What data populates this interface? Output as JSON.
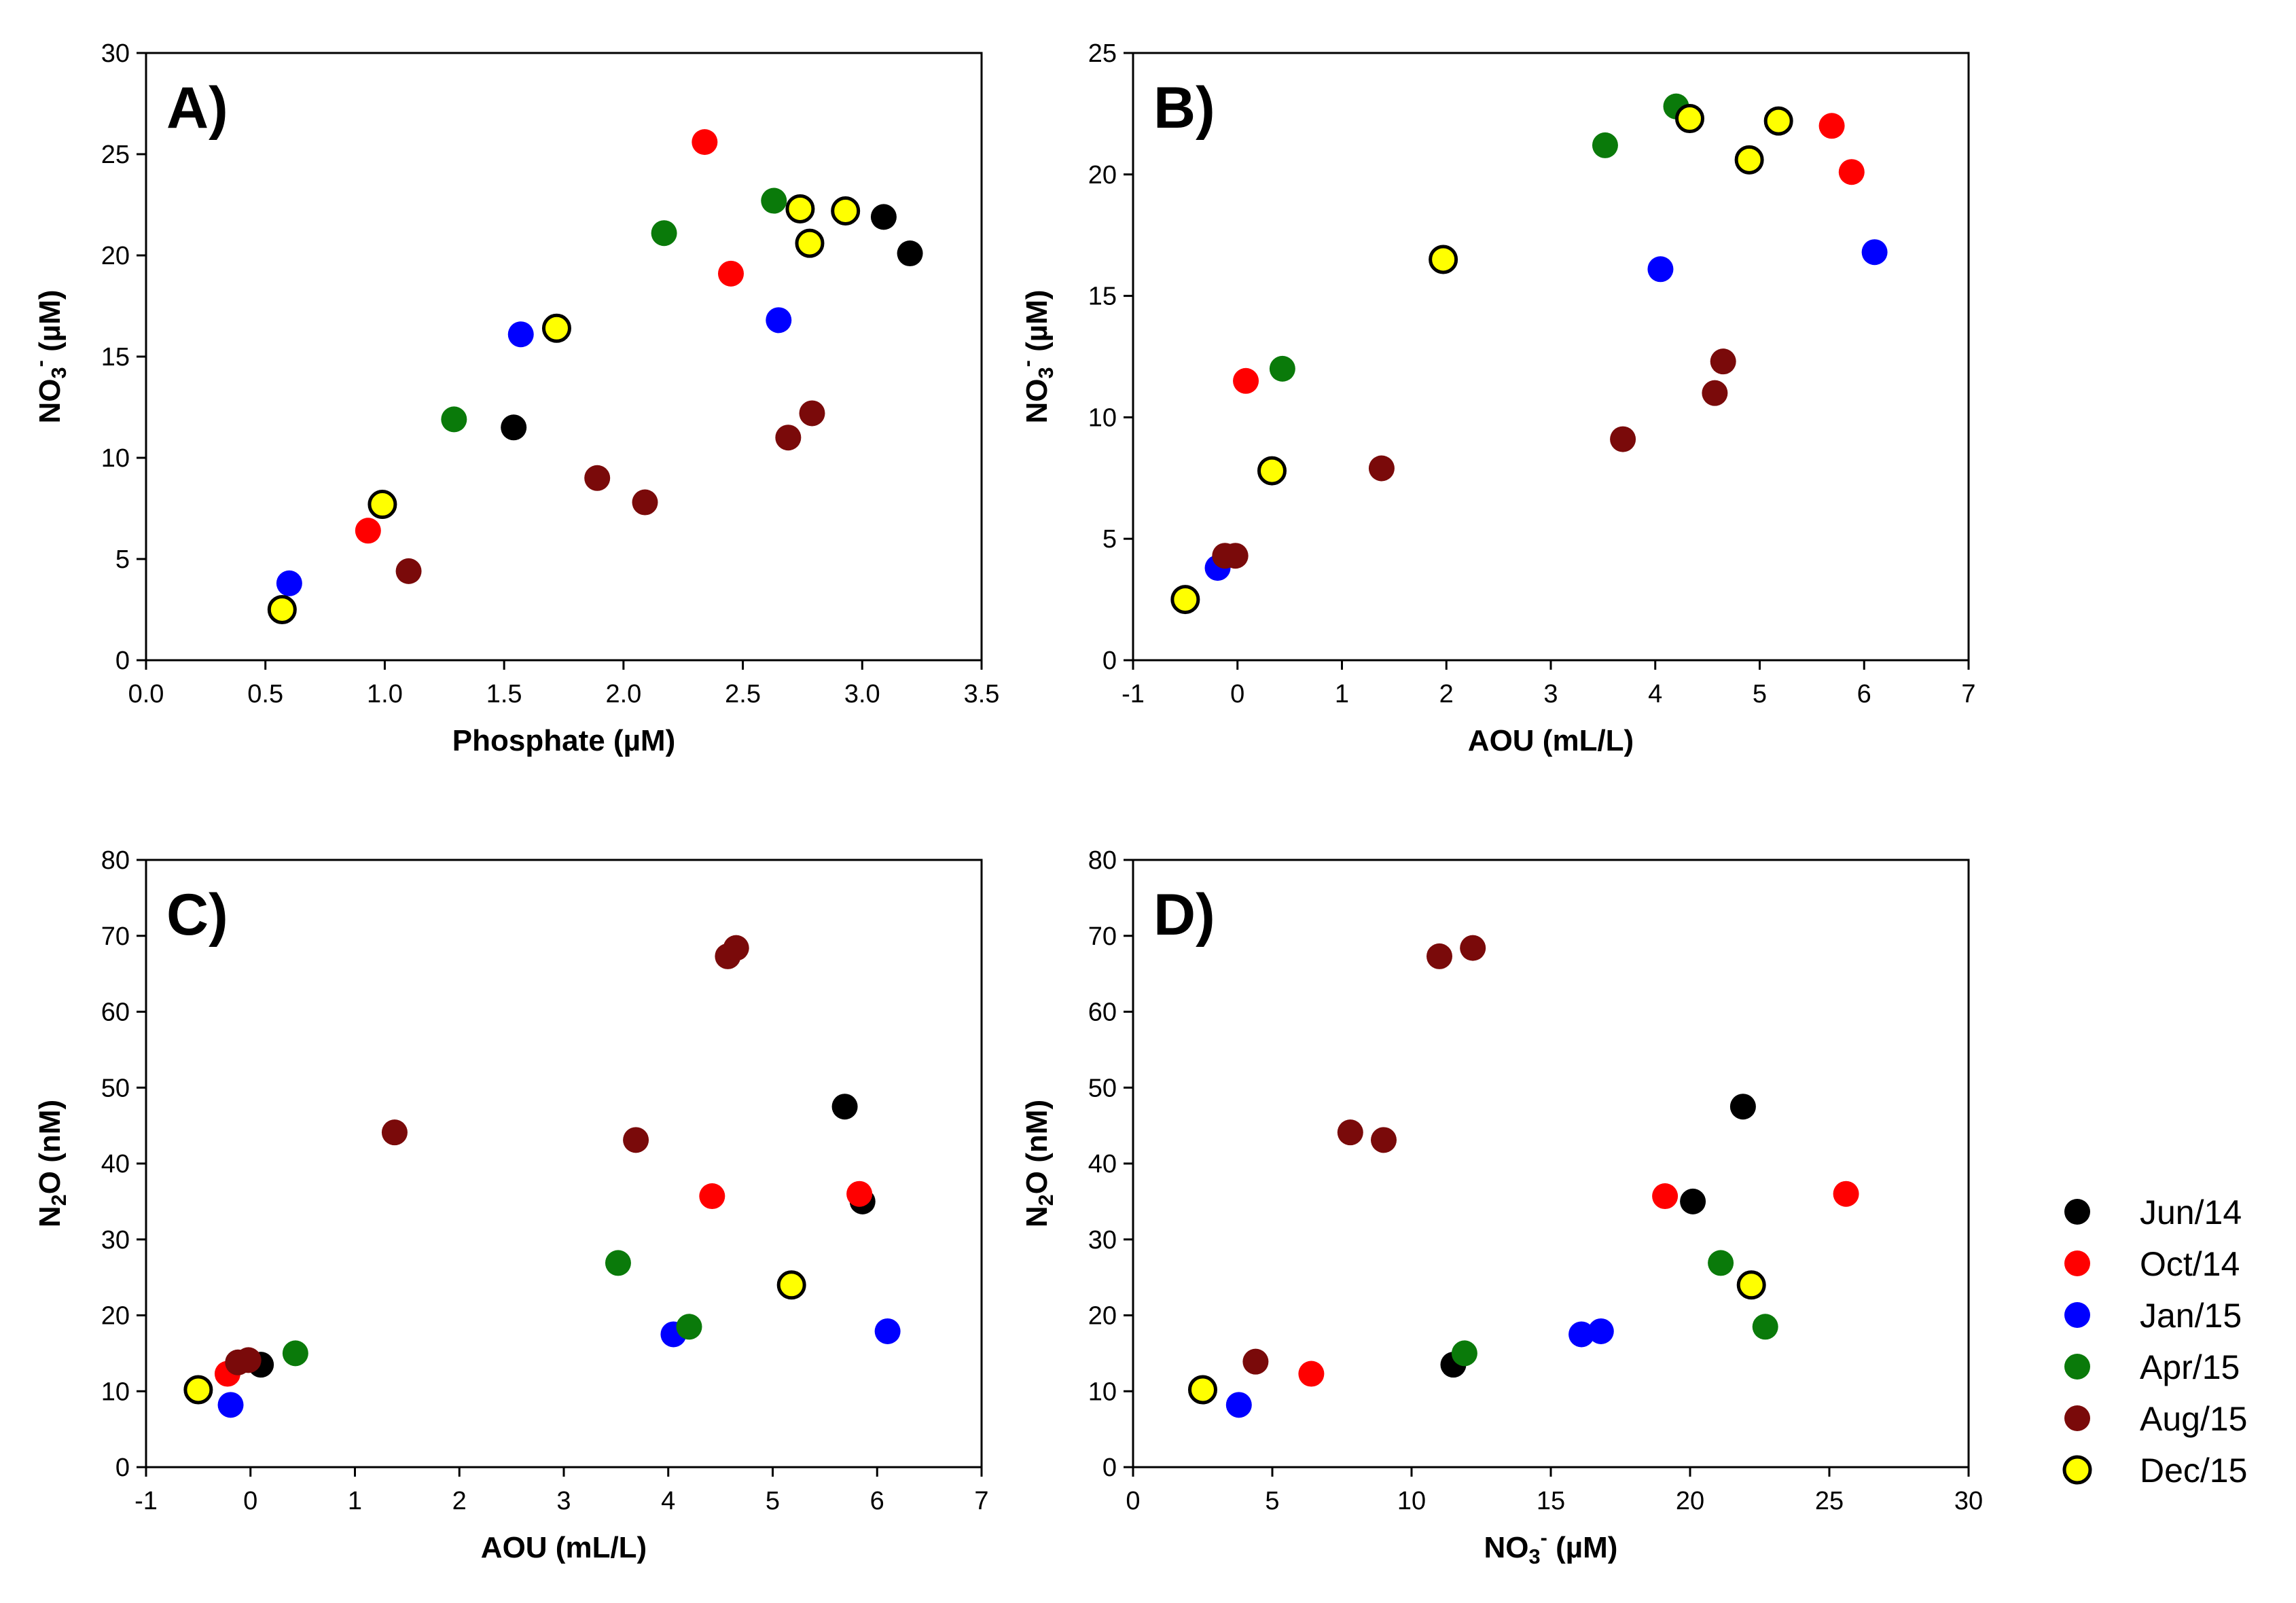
{
  "colors": {
    "Jun/14": "#000000",
    "Oct/14": "#ff0000",
    "Jan/15": "#0000ff",
    "Apr/15": "#0a7a0a",
    "Aug/15": "#7a0a0a",
    "Dec/15": "#ffff00"
  },
  "legend": [
    "Jun/14",
    "Oct/14",
    "Jan/15",
    "Apr/15",
    "Aug/15",
    "Dec/15"
  ],
  "chart_data": [
    {
      "type": "scatter",
      "panel_label": "A)",
      "xlabel": "Phosphate (µM)",
      "ylabel": {
        "base": "NO",
        "sub": "3",
        "sup": "-",
        "rest": " (µM)"
      },
      "xlim": [
        0.0,
        3.5
      ],
      "ylim": [
        0,
        30
      ],
      "xticks": [
        "0.0",
        "0.5",
        "1.0",
        "1.5",
        "2.0",
        "2.5",
        "3.0",
        "3.5"
      ],
      "yticks": [
        "0",
        "5",
        "10",
        "15",
        "20",
        "25",
        "30"
      ],
      "series": [
        {
          "name": "Jun/14",
          "points": [
            [
              1.54,
              11.5
            ],
            [
              3.09,
              21.9
            ],
            [
              3.2,
              20.1
            ]
          ]
        },
        {
          "name": "Oct/14",
          "points": [
            [
              0.93,
              6.4
            ],
            [
              2.34,
              25.6
            ],
            [
              2.45,
              19.1
            ]
          ]
        },
        {
          "name": "Jan/15",
          "points": [
            [
              0.6,
              3.8
            ],
            [
              1.57,
              16.1
            ],
            [
              2.65,
              16.8
            ]
          ]
        },
        {
          "name": "Apr/15",
          "points": [
            [
              1.29,
              11.9
            ],
            [
              2.17,
              21.1
            ],
            [
              2.63,
              22.7
            ]
          ]
        },
        {
          "name": "Aug/15",
          "points": [
            [
              1.1,
              4.4
            ],
            [
              1.89,
              9.0
            ],
            [
              2.09,
              7.8
            ],
            [
              2.69,
              11.0
            ],
            [
              2.79,
              12.2
            ]
          ]
        },
        {
          "name": "Dec/15",
          "points": [
            [
              0.57,
              2.5
            ],
            [
              0.99,
              7.7
            ],
            [
              1.72,
              16.4
            ],
            [
              2.74,
              22.3
            ],
            [
              2.78,
              20.6
            ],
            [
              2.93,
              22.2
            ]
          ]
        }
      ]
    },
    {
      "type": "scatter",
      "panel_label": "B)",
      "xlabel": "AOU (mL/L)",
      "ylabel": {
        "base": "NO",
        "sub": "3",
        "sup": "-",
        "rest": " (µM)"
      },
      "xlim": [
        -1,
        7
      ],
      "ylim": [
        0,
        25
      ],
      "xticks": [
        "-1",
        "0",
        "1",
        "2",
        "3",
        "4",
        "5",
        "6",
        "7"
      ],
      "yticks": [
        "0",
        "5",
        "10",
        "15",
        "20",
        "25"
      ],
      "series": [
        {
          "name": "Oct/14",
          "points": [
            [
              0.08,
              11.5
            ],
            [
              5.69,
              22.0
            ],
            [
              5.88,
              20.1
            ]
          ]
        },
        {
          "name": "Jan/15",
          "points": [
            [
              -0.19,
              3.8
            ],
            [
              4.05,
              16.1
            ],
            [
              6.1,
              16.8
            ]
          ]
        },
        {
          "name": "Apr/15",
          "points": [
            [
              0.43,
              12.0
            ],
            [
              3.52,
              21.2
            ],
            [
              4.2,
              22.8
            ]
          ]
        },
        {
          "name": "Aug/15",
          "points": [
            [
              -0.12,
              4.3
            ],
            [
              -0.02,
              4.3
            ],
            [
              1.38,
              7.9
            ],
            [
              3.69,
              9.1
            ],
            [
              4.57,
              11.0
            ],
            [
              4.65,
              12.3
            ]
          ]
        },
        {
          "name": "Dec/15",
          "points": [
            [
              -0.5,
              2.5
            ],
            [
              0.33,
              7.8
            ],
            [
              1.97,
              16.5
            ],
            [
              4.33,
              22.3
            ],
            [
              4.9,
              20.6
            ],
            [
              5.18,
              22.2
            ]
          ]
        }
      ]
    },
    {
      "type": "scatter",
      "panel_label": "C)",
      "xlabel": "AOU (mL/L)",
      "ylabel": {
        "base": "N",
        "sub": "2",
        "sup": "",
        "rest": "O (nM)"
      },
      "xlim": [
        -1,
        7
      ],
      "ylim": [
        0,
        80
      ],
      "xticks": [
        "-1",
        "0",
        "1",
        "2",
        "3",
        "4",
        "5",
        "6",
        "7"
      ],
      "yticks": [
        "0",
        "10",
        "20",
        "30",
        "40",
        "50",
        "60",
        "70",
        "80"
      ],
      "series": [
        {
          "name": "Jun/14",
          "points": [
            [
              0.1,
              13.5
            ],
            [
              5.69,
              47.5
            ],
            [
              5.86,
              35.0
            ]
          ]
        },
        {
          "name": "Oct/14",
          "points": [
            [
              -0.22,
              12.3
            ],
            [
              4.42,
              35.7
            ],
            [
              5.83,
              36.0
            ]
          ]
        },
        {
          "name": "Jan/15",
          "points": [
            [
              -0.19,
              8.2
            ],
            [
              4.05,
              17.5
            ],
            [
              6.1,
              17.9
            ]
          ]
        },
        {
          "name": "Apr/15",
          "points": [
            [
              0.43,
              15.0
            ],
            [
              3.52,
              26.9
            ],
            [
              4.2,
              18.5
            ]
          ]
        },
        {
          "name": "Aug/15",
          "points": [
            [
              -0.12,
              13.8
            ],
            [
              -0.02,
              14.1
            ],
            [
              1.38,
              44.1
            ],
            [
              3.69,
              43.1
            ],
            [
              4.57,
              67.3
            ],
            [
              4.65,
              68.4
            ]
          ]
        },
        {
          "name": "Dec/15",
          "points": [
            [
              -0.5,
              10.2
            ],
            [
              5.18,
              24.0
            ]
          ]
        }
      ]
    },
    {
      "type": "scatter",
      "panel_label": "D)",
      "xlabel": {
        "base": "NO",
        "sub": "3",
        "sup": "-",
        "rest": " (µM)"
      },
      "ylabel": {
        "base": "N",
        "sub": "2",
        "sup": "",
        "rest": "O (nM)"
      },
      "xlim": [
        0,
        30
      ],
      "ylim": [
        0,
        80
      ],
      "xticks": [
        "0",
        "5",
        "10",
        "15",
        "20",
        "25",
        "30"
      ],
      "yticks": [
        "0",
        "10",
        "20",
        "30",
        "40",
        "50",
        "60",
        "70",
        "80"
      ],
      "series": [
        {
          "name": "Jun/14",
          "points": [
            [
              11.5,
              13.5
            ],
            [
              20.1,
              35.0
            ],
            [
              21.9,
              47.5
            ]
          ]
        },
        {
          "name": "Oct/14",
          "points": [
            [
              6.4,
              12.3
            ],
            [
              19.1,
              35.7
            ],
            [
              25.6,
              36.0
            ]
          ]
        },
        {
          "name": "Jan/15",
          "points": [
            [
              3.8,
              8.2
            ],
            [
              16.1,
              17.5
            ],
            [
              16.8,
              17.9
            ]
          ]
        },
        {
          "name": "Apr/15",
          "points": [
            [
              11.9,
              15.0
            ],
            [
              21.1,
              26.9
            ],
            [
              22.7,
              18.5
            ]
          ]
        },
        {
          "name": "Aug/15",
          "points": [
            [
              4.4,
              13.9
            ],
            [
              7.8,
              44.1
            ],
            [
              9.0,
              43.1
            ],
            [
              11.0,
              67.3
            ],
            [
              12.2,
              68.4
            ]
          ]
        },
        {
          "name": "Dec/15",
          "points": [
            [
              2.5,
              10.2
            ],
            [
              22.2,
              24.0
            ]
          ]
        }
      ]
    }
  ]
}
